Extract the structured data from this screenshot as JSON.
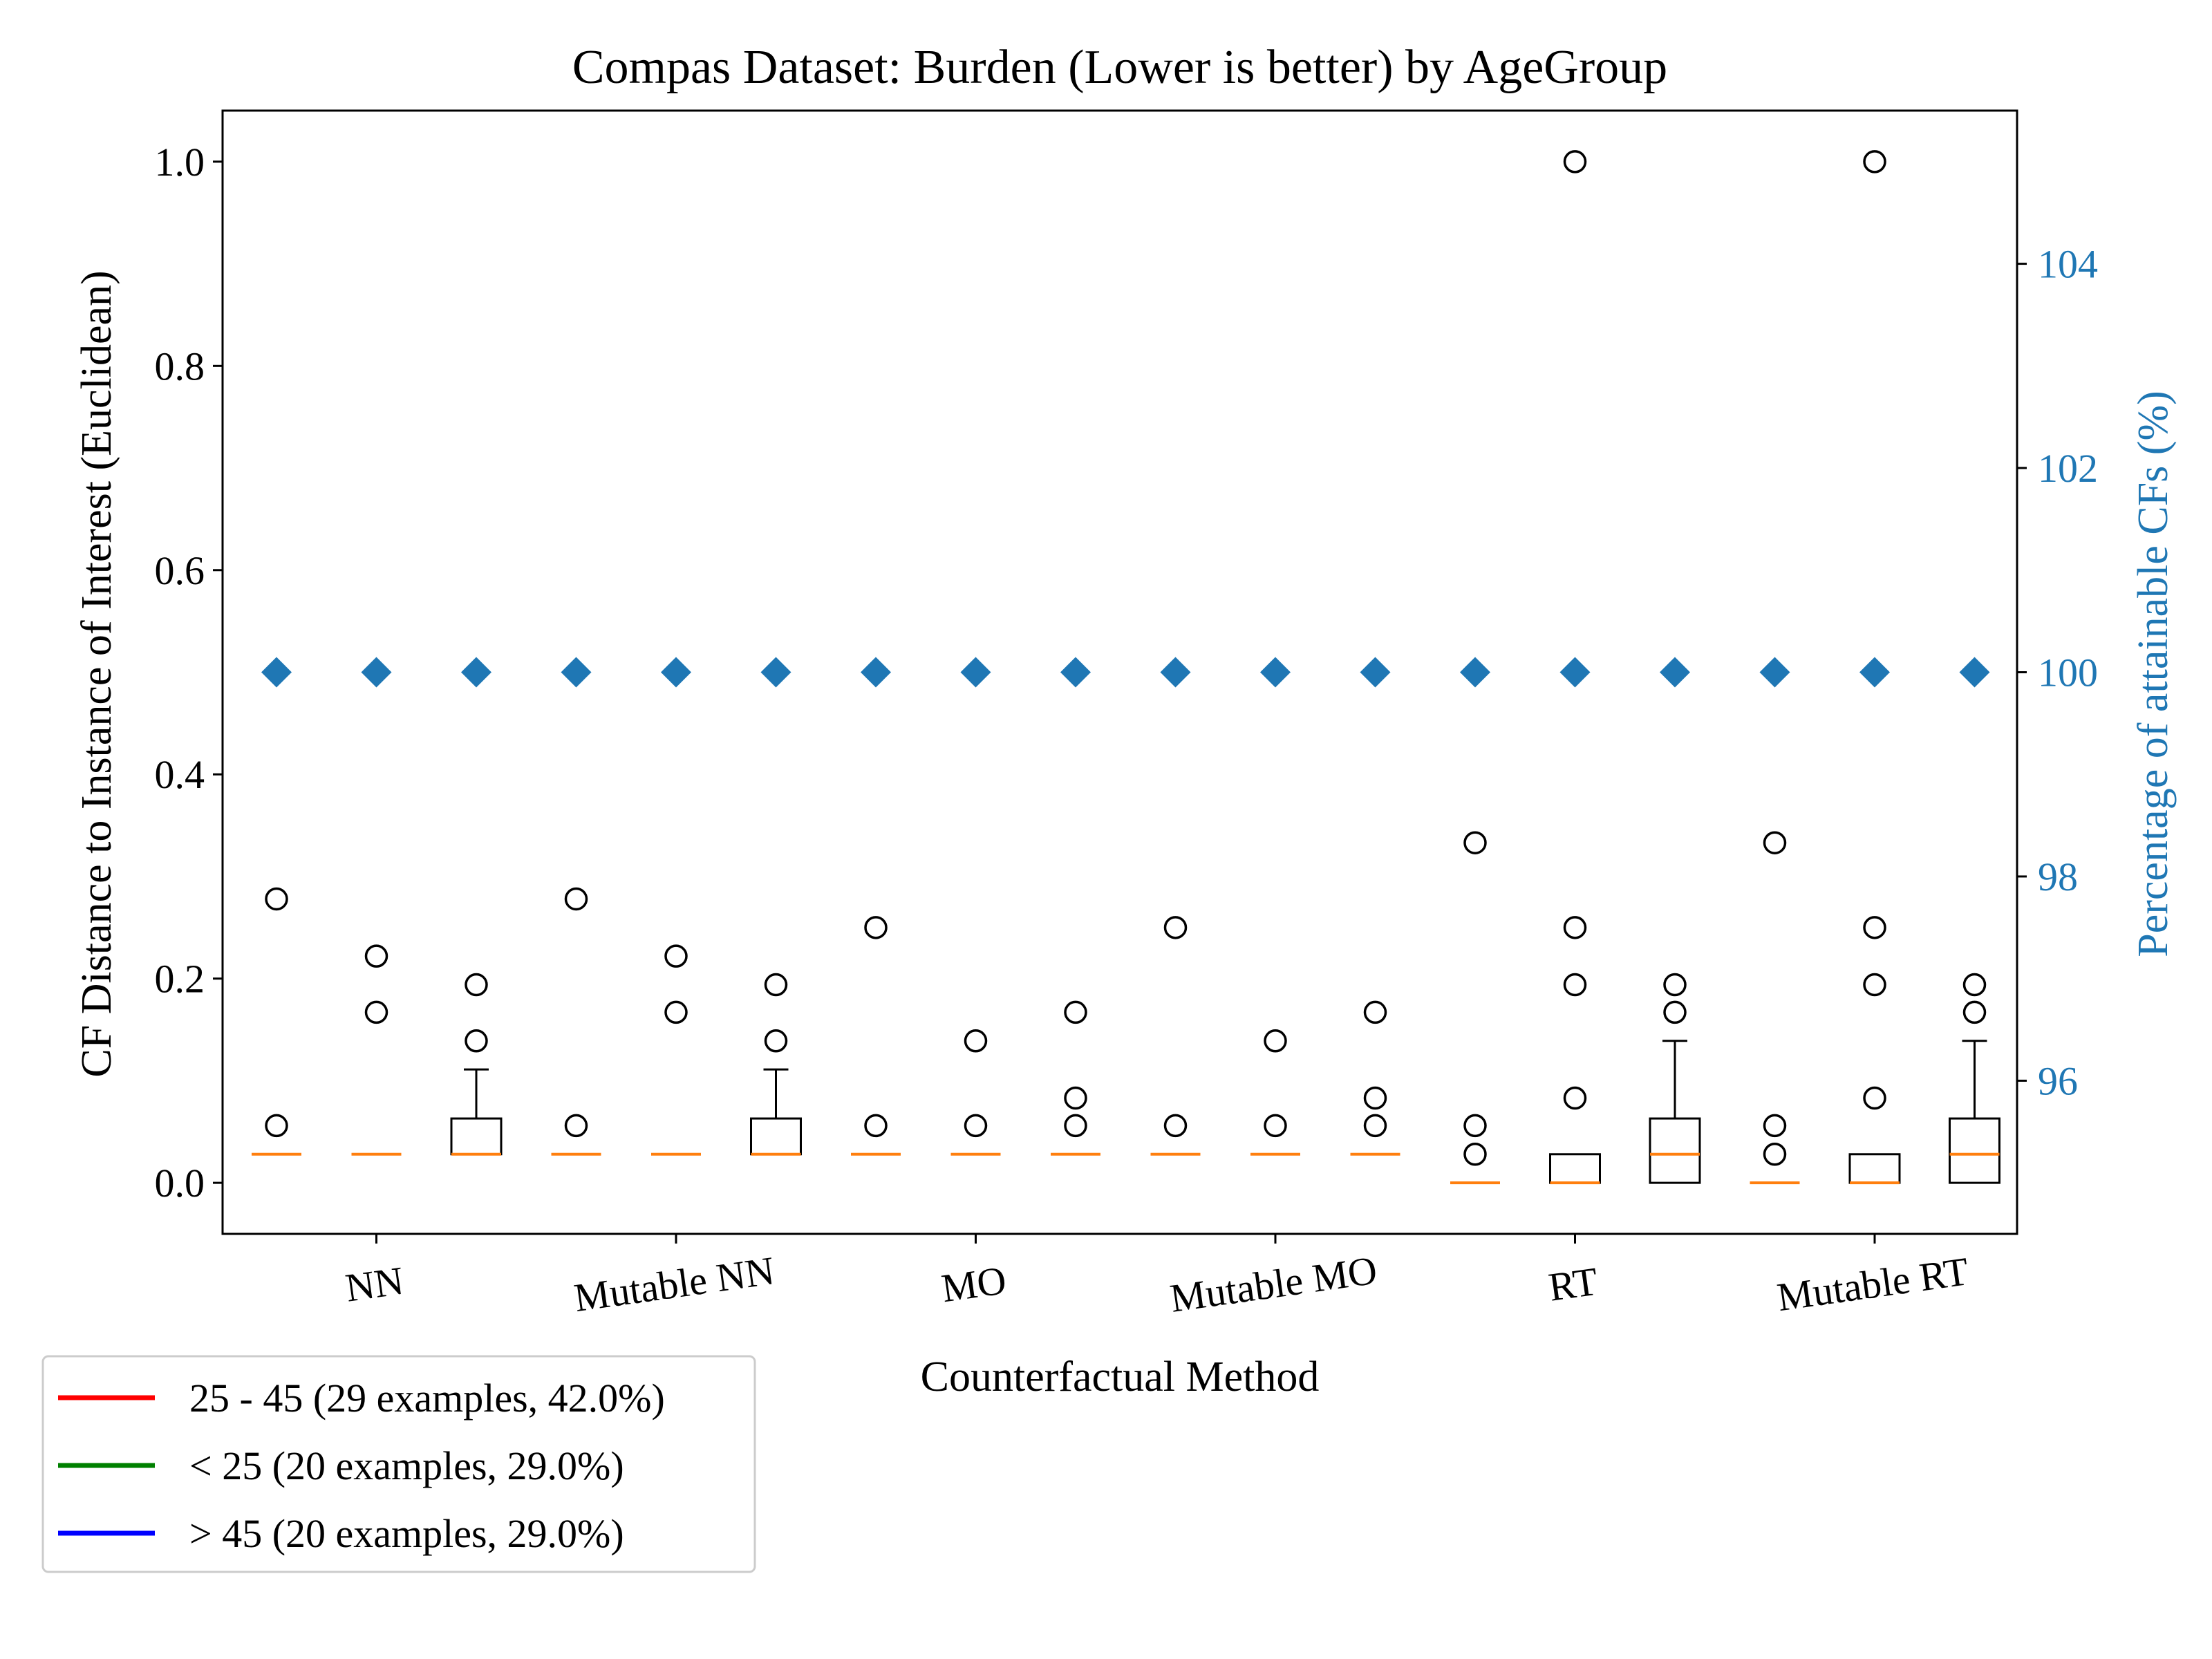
{
  "chart_data": {
    "type": "box",
    "title": "Compas Dataset: Burden (Lower is better) by AgeGroup",
    "xlabel": "Counterfactual Method",
    "ylabel": "CF Distance to Instance of Interest (Euclidean)",
    "y2label": "Percentage of attainable CFs (%)",
    "ylim": [
      -0.05,
      1.05
    ],
    "y2lim": [
      94.5,
      105.5
    ],
    "yticks": [
      "0.0",
      "0.2",
      "0.4",
      "0.6",
      "0.8",
      "1.0"
    ],
    "y2ticks": [
      "96",
      "98",
      "100",
      "102",
      "104"
    ],
    "categories": [
      "NN",
      "Mutable NN",
      "MO",
      "Mutable MO",
      "RT",
      "Mutable RT"
    ],
    "groups_per_category": 3,
    "series_colors": {
      "median": "#ff7f0e",
      "attainable": "#1f77b4",
      "secondary_axis": "#1f77b4"
    },
    "boxes": [
      {
        "q1": 0.028,
        "median": 0.028,
        "q3": 0.028,
        "whisker_low": 0.028,
        "whisker_high": 0.028,
        "fliers": [
          0.056,
          0.278
        ]
      },
      {
        "q1": 0.028,
        "median": 0.028,
        "q3": 0.028,
        "whisker_low": 0.028,
        "whisker_high": 0.028,
        "fliers": [
          0.167,
          0.222
        ]
      },
      {
        "q1": 0.028,
        "median": 0.028,
        "q3": 0.063,
        "whisker_low": 0.028,
        "whisker_high": 0.111,
        "fliers": [
          0.139,
          0.194
        ]
      },
      {
        "q1": 0.028,
        "median": 0.028,
        "q3": 0.028,
        "whisker_low": 0.028,
        "whisker_high": 0.028,
        "fliers": [
          0.056,
          0.278
        ]
      },
      {
        "q1": 0.028,
        "median": 0.028,
        "q3": 0.028,
        "whisker_low": 0.028,
        "whisker_high": 0.028,
        "fliers": [
          0.167,
          0.222
        ]
      },
      {
        "q1": 0.028,
        "median": 0.028,
        "q3": 0.063,
        "whisker_low": 0.028,
        "whisker_high": 0.111,
        "fliers": [
          0.139,
          0.194
        ]
      },
      {
        "q1": 0.028,
        "median": 0.028,
        "q3": 0.028,
        "whisker_low": 0.028,
        "whisker_high": 0.028,
        "fliers": [
          0.056,
          0.25
        ]
      },
      {
        "q1": 0.028,
        "median": 0.028,
        "q3": 0.028,
        "whisker_low": 0.028,
        "whisker_high": 0.028,
        "fliers": [
          0.056,
          0.139
        ]
      },
      {
        "q1": 0.028,
        "median": 0.028,
        "q3": 0.028,
        "whisker_low": 0.028,
        "whisker_high": 0.028,
        "fliers": [
          0.056,
          0.083,
          0.167
        ]
      },
      {
        "q1": 0.028,
        "median": 0.028,
        "q3": 0.028,
        "whisker_low": 0.028,
        "whisker_high": 0.028,
        "fliers": [
          0.056,
          0.25
        ]
      },
      {
        "q1": 0.028,
        "median": 0.028,
        "q3": 0.028,
        "whisker_low": 0.028,
        "whisker_high": 0.028,
        "fliers": [
          0.056,
          0.139
        ]
      },
      {
        "q1": 0.028,
        "median": 0.028,
        "q3": 0.028,
        "whisker_low": 0.028,
        "whisker_high": 0.028,
        "fliers": [
          0.056,
          0.083,
          0.167
        ]
      },
      {
        "q1": 0.0,
        "median": 0.0,
        "q3": 0.0,
        "whisker_low": 0.0,
        "whisker_high": 0.0,
        "fliers": [
          0.028,
          0.056,
          0.333
        ]
      },
      {
        "q1": 0.0,
        "median": 0.0,
        "q3": 0.028,
        "whisker_low": 0.0,
        "whisker_high": 0.028,
        "fliers": [
          0.083,
          0.194,
          0.25,
          1.0
        ]
      },
      {
        "q1": 0.0,
        "median": 0.028,
        "q3": 0.063,
        "whisker_low": 0.0,
        "whisker_high": 0.139,
        "fliers": [
          0.167,
          0.194
        ]
      },
      {
        "q1": 0.0,
        "median": 0.0,
        "q3": 0.0,
        "whisker_low": 0.0,
        "whisker_high": 0.0,
        "fliers": [
          0.028,
          0.056,
          0.333
        ]
      },
      {
        "q1": 0.0,
        "median": 0.0,
        "q3": 0.028,
        "whisker_low": 0.0,
        "whisker_high": 0.028,
        "fliers": [
          0.083,
          0.194,
          0.25,
          1.0
        ]
      },
      {
        "q1": 0.0,
        "median": 0.028,
        "q3": 0.063,
        "whisker_low": 0.0,
        "whisker_high": 0.139,
        "fliers": [
          0.167,
          0.194
        ]
      }
    ],
    "attainable_pct": [
      100,
      100,
      100,
      100,
      100,
      100,
      100,
      100,
      100,
      100,
      100,
      100,
      100,
      100,
      100,
      100,
      100,
      100
    ],
    "legend": {
      "placement": "bottom-left, outside axes",
      "entries": [
        {
          "label": "25 - 45 (29 examples, 42.0%)",
          "color": "#ff0000"
        },
        {
          "label": "< 25 (20 examples, 29.0%)",
          "color": "#008000"
        },
        {
          "label": "> 45 (20 examples, 29.0%)",
          "color": "#0000ff"
        }
      ]
    },
    "grid": false
  }
}
